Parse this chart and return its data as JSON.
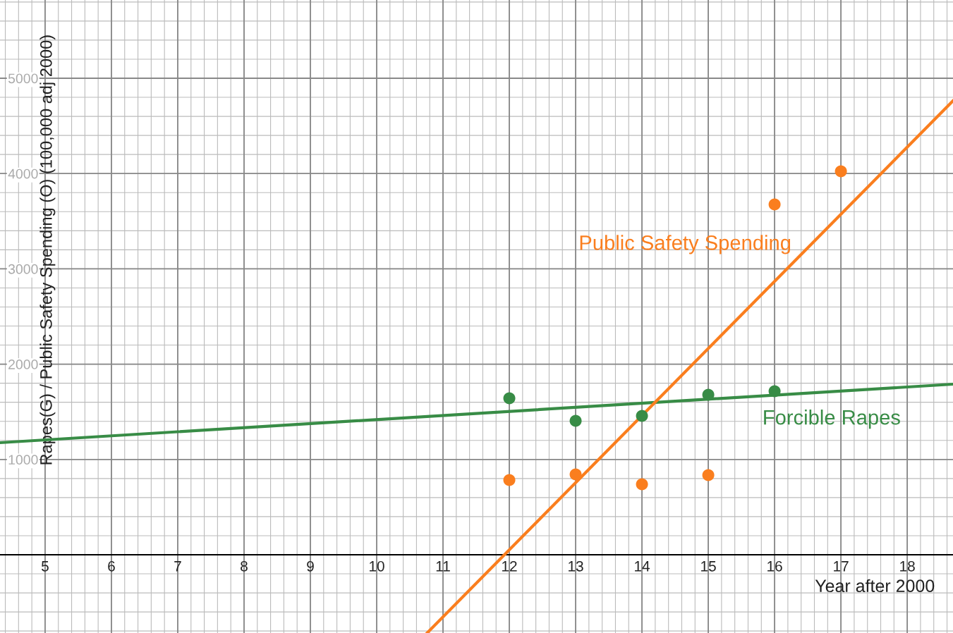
{
  "chart_data": {
    "type": "scatter",
    "xlabel": "Year after 2000",
    "ylabel": "Rapes(G) / Public Safety Spending (O) (100,000 adj 2000)",
    "xlim": [
      4.32,
      18.69
    ],
    "ylim": [
      -821,
      5821
    ],
    "xticks": [
      5,
      6,
      7,
      8,
      9,
      10,
      11,
      12,
      13,
      14,
      15,
      16,
      17,
      18
    ],
    "yticks": [
      1000,
      2000,
      3000,
      4000,
      5000
    ],
    "grid": true,
    "series": [
      {
        "color": "#388c46",
        "marker": "circle",
        "x": [
          12,
          13,
          14,
          15,
          16
        ],
        "values": [
          1642,
          1405,
          1457,
          1679,
          1716
        ]
      },
      {
        "color": "#fa7e1e",
        "marker": "circle",
        "x": [
          12,
          13,
          14,
          15,
          16,
          17
        ],
        "values": [
          784,
          843,
          740,
          836,
          3676,
          4024
        ]
      },
      {
        "type": "line",
        "name": "Forcible Rapes",
        "color": "#388c46",
        "marker": "none",
        "x": [
          4.32,
          18.69
        ],
        "values": [
          1176,
          1790
        ]
      },
      {
        "type": "line",
        "name": "Public Safety Spending",
        "color": "#fa7e1e",
        "marker": "none",
        "x": [
          10.76,
          18.69
        ],
        "values": [
          -821,
          4763
        ]
      }
    ]
  }
}
